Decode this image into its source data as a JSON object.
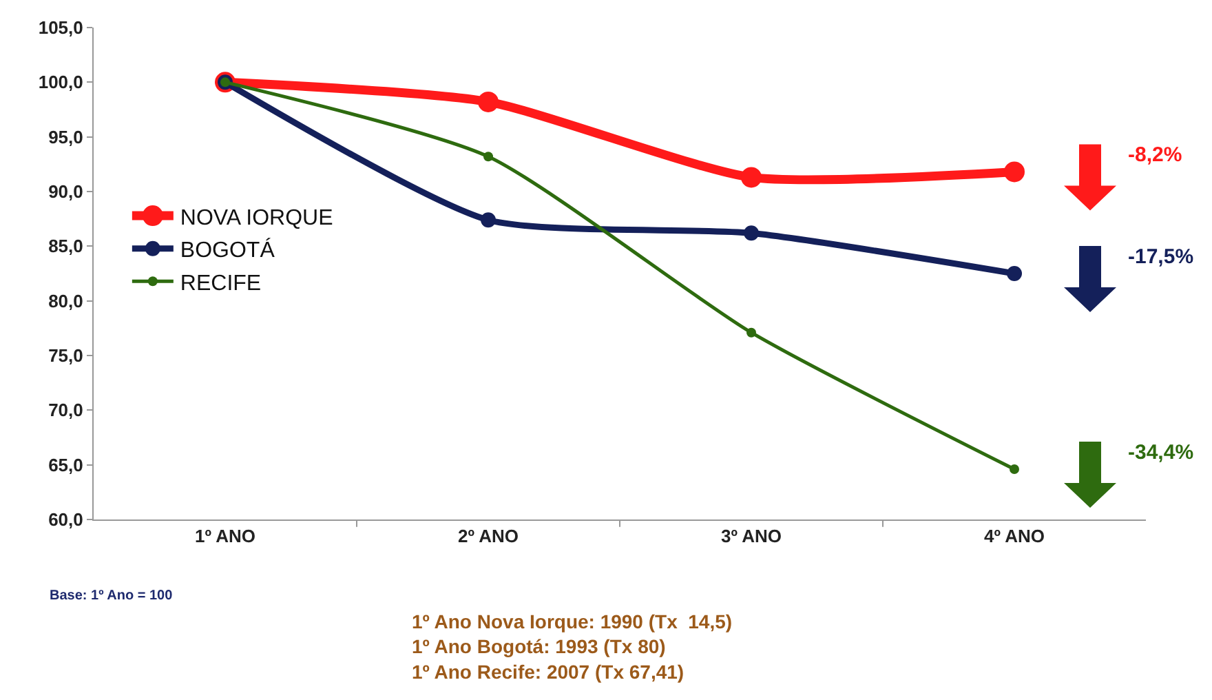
{
  "chart_data": {
    "type": "line",
    "categories": [
      "1º ANO",
      "2º ANO",
      "3º ANO",
      "4º ANO"
    ],
    "series": [
      {
        "name": "NOVA IORQUE",
        "color": "#ff1a1a",
        "values": [
          100,
          98.2,
          91.3,
          91.8
        ]
      },
      {
        "name": "BOGOTÁ",
        "color": "#14205a",
        "values": [
          100,
          87.4,
          86.2,
          82.5
        ]
      },
      {
        "name": "RECIFE",
        "color": "#2e6b0f",
        "values": [
          100,
          93.2,
          77.1,
          64.6
        ]
      }
    ],
    "ylim": [
      60,
      105
    ],
    "yticks": [
      {
        "value": 60,
        "label": "60,0"
      },
      {
        "value": 65,
        "label": "65,0"
      },
      {
        "value": 70,
        "label": "70,0"
      },
      {
        "value": 75,
        "label": "75,0"
      },
      {
        "value": 80,
        "label": "80,0"
      },
      {
        "value": 85,
        "label": "85,0"
      },
      {
        "value": 90,
        "label": "90,0"
      },
      {
        "value": 95,
        "label": "95,0"
      },
      {
        "value": 100,
        "label": "100,0"
      },
      {
        "value": 105,
        "label": "105,0"
      }
    ],
    "grid": false,
    "legend": "left",
    "marker": "circle",
    "line_style": "solid",
    "annotations": [
      "-8,2%",
      "-17,5%",
      "-34,4%",
      "Base: 1º Ano = 100",
      "1º Ano Nova Iorque: 1990 (Tx  14,5)\n1º Ano Bogotá: 1993 (Tx 80)\n1º Ano Recife: 2007 (Tx 67,41)"
    ]
  }
}
